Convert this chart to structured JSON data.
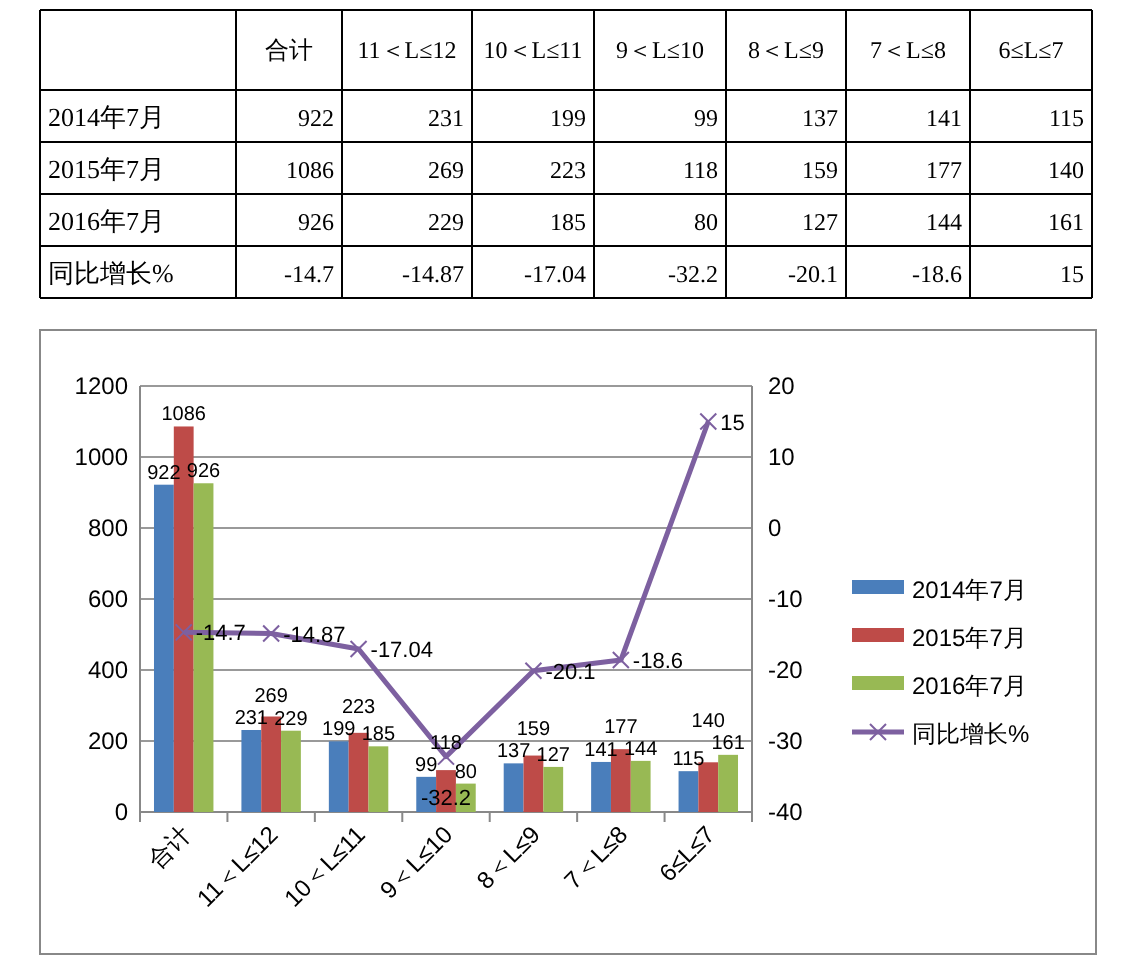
{
  "chart_data": {
    "type": "bar",
    "categories": [
      "合计",
      "11＜L≤12",
      "10＜L≤11",
      "9＜L≤10",
      "8＜L≤9",
      "7＜L≤8",
      "6≤L≤7"
    ],
    "series": [
      {
        "name": "2014年7月",
        "color": "#4a7ebb",
        "values": [
          922,
          231,
          199,
          99,
          137,
          141,
          115
        ],
        "value_labels": [
          "922",
          "231",
          "199",
          "99",
          "137",
          "141",
          "115"
        ]
      },
      {
        "name": "2015年7月",
        "color": "#be4b48",
        "values": [
          1086,
          269,
          223,
          118,
          159,
          177,
          140
        ],
        "value_labels": [
          "1086",
          "269",
          "223",
          "118",
          "159",
          "177",
          "140"
        ]
      },
      {
        "name": "2016年7月",
        "color": "#98b954",
        "values": [
          926,
          229,
          185,
          80,
          127,
          144,
          161
        ],
        "value_labels": [
          "926",
          "229",
          "185",
          "80",
          "127",
          "144",
          "161"
        ]
      },
      {
        "name": "同比增长%",
        "type": "line",
        "axis": "y2",
        "color": "#7d60a0",
        "marker": "cross",
        "values": [
          -14.7,
          -14.87,
          -17.04,
          -32.2,
          -20.1,
          -18.6,
          15
        ],
        "value_labels": [
          "-14.7",
          "-14.87",
          "-17.04",
          "-32.2",
          "-20.1",
          "-18.6",
          "15"
        ]
      }
    ],
    "ylim": [
      0,
      1200
    ],
    "yticks": [
      0,
      200,
      400,
      600,
      800,
      1000,
      1200
    ],
    "y2lim": [
      -40,
      20
    ],
    "y2ticks": [
      -40,
      -30,
      -20,
      -10,
      0,
      10,
      20
    ],
    "grid": "y",
    "legend": "right",
    "data_labels": true
  }
}
